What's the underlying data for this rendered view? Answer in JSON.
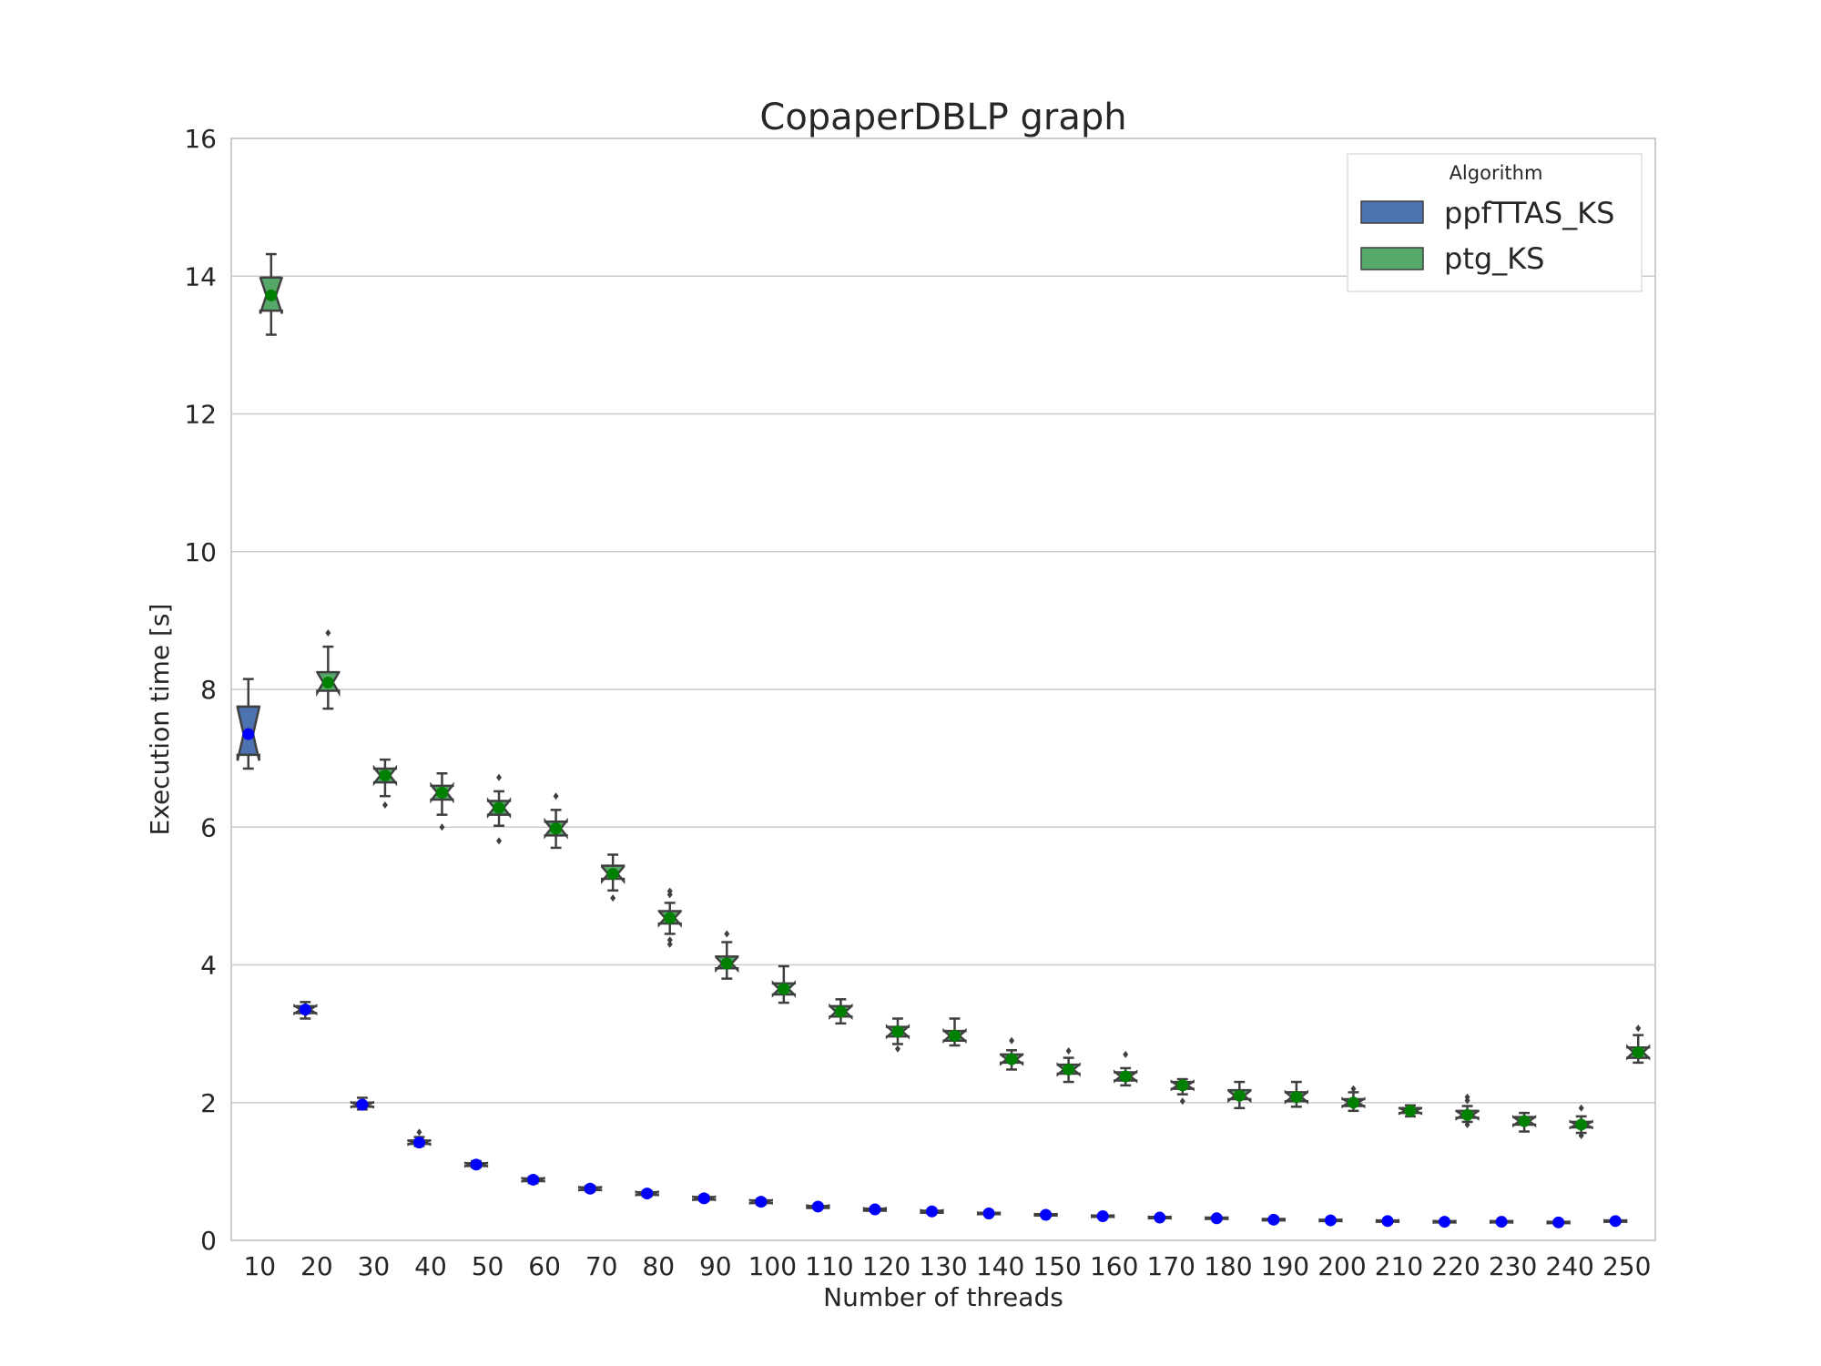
{
  "chart_data": {
    "type": "box",
    "title": "CopaperDBLP graph",
    "xlabel": "Number of threads",
    "ylabel": "Execution time [s]",
    "ylim": [
      0,
      16
    ],
    "yticks": [
      0,
      2,
      4,
      6,
      8,
      10,
      12,
      14,
      16
    ],
    "grid": true,
    "legend": {
      "title": "Algorithm",
      "placement": "top-right",
      "entries": [
        {
          "label": "ppfTTAS_KS",
          "color": "#4c72b0"
        },
        {
          "label": "ptg_KS",
          "color": "#55a868"
        }
      ]
    },
    "categories": [
      "10",
      "20",
      "30",
      "40",
      "50",
      "60",
      "70",
      "80",
      "90",
      "100",
      "110",
      "120",
      "130",
      "140",
      "150",
      "160",
      "170",
      "180",
      "190",
      "200",
      "210",
      "220",
      "230",
      "240",
      "250"
    ],
    "series": [
      {
        "name": "ppfTTAS_KS",
        "color": "#4c72b0",
        "mean_marker_color": "#0000ff",
        "boxes": [
          {
            "cat": "10",
            "min": 6.85,
            "q1": 7.05,
            "median": 7.35,
            "q3": 7.75,
            "max": 8.15,
            "mean": 7.35,
            "outliers": []
          }
        ]
      },
      {
        "name": "ptg_KS",
        "color": "#55a868",
        "mean_marker_color": "#008000",
        "boxes": [
          {
            "cat": "10",
            "min": 13.15,
            "q1": 13.5,
            "median": 13.72,
            "q3": 13.98,
            "max": 14.32,
            "mean": 13.72,
            "outliers": []
          },
          {
            "cat": "20",
            "min": 7.72,
            "q1": 7.98,
            "median": 8.1,
            "q3": 8.25,
            "max": 8.62,
            "mean": 8.1,
            "outliers": [
              8.82
            ]
          },
          {
            "cat": "30",
            "min": 6.45,
            "q1": 6.65,
            "median": 6.75,
            "q3": 6.85,
            "max": 6.98,
            "mean": 6.75,
            "outliers": [
              6.32
            ]
          },
          {
            "cat": "40",
            "min": 6.18,
            "q1": 6.4,
            "median": 6.5,
            "q3": 6.6,
            "max": 6.78,
            "mean": 6.5,
            "outliers": [
              6.0
            ]
          },
          {
            "cat": "50",
            "min": 6.02,
            "q1": 6.18,
            "median": 6.28,
            "q3": 6.38,
            "max": 6.52,
            "mean": 6.28,
            "outliers": [
              5.8,
              6.72
            ]
          },
          {
            "cat": "60",
            "min": 5.7,
            "q1": 5.88,
            "median": 5.98,
            "q3": 6.08,
            "max": 6.25,
            "mean": 5.98,
            "outliers": [
              6.45
            ]
          },
          {
            "cat": "70",
            "min": 5.08,
            "q1": 5.25,
            "median": 5.32,
            "q3": 5.44,
            "max": 5.6,
            "mean": 5.32,
            "outliers": [
              4.97
            ]
          },
          {
            "cat": "80",
            "min": 4.45,
            "q1": 4.6,
            "median": 4.68,
            "q3": 4.78,
            "max": 4.9,
            "mean": 4.68,
            "outliers": [
              4.3,
              4.36,
              5.02,
              5.07
            ]
          },
          {
            "cat": "90",
            "min": 3.8,
            "q1": 3.95,
            "median": 4.02,
            "q3": 4.12,
            "max": 4.33,
            "mean": 4.02,
            "outliers": [
              4.45
            ]
          },
          {
            "cat": "100",
            "min": 3.45,
            "q1": 3.57,
            "median": 3.65,
            "q3": 3.73,
            "max": 3.98,
            "mean": 3.65,
            "outliers": []
          },
          {
            "cat": "110",
            "min": 3.15,
            "q1": 3.25,
            "median": 3.32,
            "q3": 3.4,
            "max": 3.5,
            "mean": 3.32,
            "outliers": []
          },
          {
            "cat": "120",
            "min": 2.85,
            "q1": 2.96,
            "median": 3.03,
            "q3": 3.1,
            "max": 3.22,
            "mean": 3.03,
            "outliers": [
              2.78
            ]
          },
          {
            "cat": "130",
            "min": 2.83,
            "q1": 2.9,
            "median": 2.97,
            "q3": 3.04,
            "max": 3.22,
            "mean": 2.97,
            "outliers": []
          },
          {
            "cat": "140",
            "min": 2.48,
            "q1": 2.58,
            "median": 2.63,
            "q3": 2.7,
            "max": 2.76,
            "mean": 2.63,
            "outliers": [
              2.9
            ]
          },
          {
            "cat": "150",
            "min": 2.3,
            "q1": 2.42,
            "median": 2.48,
            "q3": 2.55,
            "max": 2.65,
            "mean": 2.48,
            "outliers": [
              2.75
            ]
          },
          {
            "cat": "160",
            "min": 2.25,
            "q1": 2.32,
            "median": 2.38,
            "q3": 2.44,
            "max": 2.5,
            "mean": 2.38,
            "outliers": [
              2.7
            ]
          },
          {
            "cat": "170",
            "min": 2.12,
            "q1": 2.2,
            "median": 2.25,
            "q3": 2.3,
            "max": 2.34,
            "mean": 2.25,
            "outliers": [
              2.02
            ]
          },
          {
            "cat": "180",
            "min": 1.92,
            "q1": 2.05,
            "median": 2.1,
            "q3": 2.18,
            "max": 2.3,
            "mean": 2.1,
            "outliers": []
          },
          {
            "cat": "190",
            "min": 1.94,
            "q1": 2.02,
            "median": 2.08,
            "q3": 2.15,
            "max": 2.3,
            "mean": 2.08,
            "outliers": []
          },
          {
            "cat": "200",
            "min": 1.88,
            "q1": 1.95,
            "median": 2.0,
            "q3": 2.05,
            "max": 2.15,
            "mean": 2.0,
            "outliers": [
              2.2
            ]
          },
          {
            "cat": "210",
            "min": 1.8,
            "q1": 1.85,
            "median": 1.88,
            "q3": 1.92,
            "max": 1.96,
            "mean": 1.88,
            "outliers": []
          },
          {
            "cat": "220",
            "min": 1.72,
            "q1": 1.78,
            "median": 1.82,
            "q3": 1.88,
            "max": 1.95,
            "mean": 1.82,
            "outliers": [
              1.68,
              2.03,
              2.08
            ]
          },
          {
            "cat": "230",
            "min": 1.58,
            "q1": 1.68,
            "median": 1.73,
            "q3": 1.79,
            "max": 1.85,
            "mean": 1.73,
            "outliers": []
          },
          {
            "cat": "240",
            "min": 1.56,
            "q1": 1.64,
            "median": 1.68,
            "q3": 1.72,
            "max": 1.8,
            "mean": 1.68,
            "outliers": [
              1.52,
              1.92
            ]
          },
          {
            "cat": "250",
            "min": 2.58,
            "q1": 2.65,
            "median": 2.73,
            "q3": 2.8,
            "max": 2.98,
            "mean": 2.73,
            "outliers": [
              3.08
            ]
          }
        ]
      },
      {
        "name": "ppfTTAS_KS",
        "color": "#4c72b0",
        "mean_marker_color": "#0000ff",
        "boxes": [
          {
            "cat": "20",
            "min": 3.22,
            "q1": 3.3,
            "median": 3.35,
            "q3": 3.4,
            "max": 3.46,
            "mean": 3.35,
            "outliers": []
          },
          {
            "cat": "30",
            "min": 1.9,
            "q1": 1.94,
            "median": 1.97,
            "q3": 2.0,
            "max": 2.07,
            "mean": 1.97,
            "outliers": []
          },
          {
            "cat": "40",
            "min": 1.37,
            "q1": 1.4,
            "median": 1.42,
            "q3": 1.45,
            "max": 1.5,
            "mean": 1.42,
            "outliers": [
              1.57
            ]
          },
          {
            "cat": "50",
            "min": 1.06,
            "q1": 1.08,
            "median": 1.1,
            "q3": 1.12,
            "max": 1.15,
            "mean": 1.1,
            "outliers": []
          },
          {
            "cat": "60",
            "min": 0.83,
            "q1": 0.86,
            "median": 0.88,
            "q3": 0.9,
            "max": 0.92,
            "mean": 0.88,
            "outliers": []
          },
          {
            "cat": "70",
            "min": 0.71,
            "q1": 0.73,
            "median": 0.75,
            "q3": 0.77,
            "max": 0.79,
            "mean": 0.75,
            "outliers": []
          },
          {
            "cat": "80",
            "min": 0.64,
            "q1": 0.66,
            "median": 0.68,
            "q3": 0.7,
            "max": 0.72,
            "mean": 0.68,
            "outliers": []
          },
          {
            "cat": "90",
            "min": 0.57,
            "q1": 0.59,
            "median": 0.61,
            "q3": 0.63,
            "max": 0.65,
            "mean": 0.61,
            "outliers": []
          },
          {
            "cat": "100",
            "min": 0.52,
            "q1": 0.54,
            "median": 0.56,
            "q3": 0.58,
            "max": 0.6,
            "mean": 0.56,
            "outliers": []
          },
          {
            "cat": "110",
            "min": 0.46,
            "q1": 0.47,
            "median": 0.49,
            "q3": 0.5,
            "max": 0.52,
            "mean": 0.49,
            "outliers": []
          },
          {
            "cat": "120",
            "min": 0.42,
            "q1": 0.43,
            "median": 0.45,
            "q3": 0.46,
            "max": 0.48,
            "mean": 0.45,
            "outliers": []
          },
          {
            "cat": "130",
            "min": 0.39,
            "q1": 0.4,
            "median": 0.42,
            "q3": 0.43,
            "max": 0.45,
            "mean": 0.42,
            "outliers": []
          },
          {
            "cat": "140",
            "min": 0.37,
            "q1": 0.38,
            "median": 0.39,
            "q3": 0.4,
            "max": 0.42,
            "mean": 0.39,
            "outliers": []
          },
          {
            "cat": "150",
            "min": 0.35,
            "q1": 0.36,
            "median": 0.37,
            "q3": 0.38,
            "max": 0.4,
            "mean": 0.37,
            "outliers": []
          },
          {
            "cat": "160",
            "min": 0.33,
            "q1": 0.34,
            "median": 0.35,
            "q3": 0.36,
            "max": 0.37,
            "mean": 0.35,
            "outliers": []
          },
          {
            "cat": "170",
            "min": 0.31,
            "q1": 0.32,
            "median": 0.33,
            "q3": 0.34,
            "max": 0.35,
            "mean": 0.33,
            "outliers": []
          },
          {
            "cat": "180",
            "min": 0.29,
            "q1": 0.31,
            "median": 0.32,
            "q3": 0.33,
            "max": 0.34,
            "mean": 0.32,
            "outliers": []
          },
          {
            "cat": "190",
            "min": 0.28,
            "q1": 0.29,
            "median": 0.3,
            "q3": 0.31,
            "max": 0.32,
            "mean": 0.3,
            "outliers": []
          },
          {
            "cat": "200",
            "min": 0.27,
            "q1": 0.28,
            "median": 0.29,
            "q3": 0.3,
            "max": 0.31,
            "mean": 0.29,
            "outliers": []
          },
          {
            "cat": "210",
            "min": 0.26,
            "q1": 0.27,
            "median": 0.28,
            "q3": 0.29,
            "max": 0.3,
            "mean": 0.28,
            "outliers": []
          },
          {
            "cat": "220",
            "min": 0.25,
            "q1": 0.26,
            "median": 0.27,
            "q3": 0.28,
            "max": 0.29,
            "mean": 0.27,
            "outliers": []
          },
          {
            "cat": "230",
            "min": 0.25,
            "q1": 0.26,
            "median": 0.27,
            "q3": 0.28,
            "max": 0.29,
            "mean": 0.27,
            "outliers": []
          },
          {
            "cat": "240",
            "min": 0.24,
            "q1": 0.25,
            "median": 0.26,
            "q3": 0.27,
            "max": 0.28,
            "mean": 0.26,
            "outliers": []
          },
          {
            "cat": "250",
            "min": 0.26,
            "q1": 0.27,
            "median": 0.28,
            "q3": 0.29,
            "max": 0.3,
            "mean": 0.28,
            "outliers": []
          }
        ]
      }
    ]
  }
}
